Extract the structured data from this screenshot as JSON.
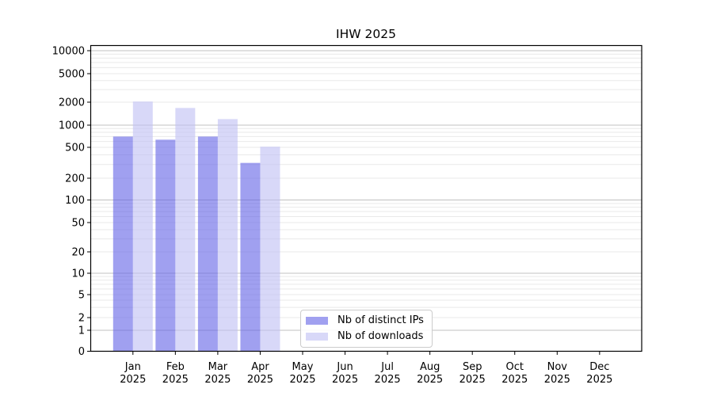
{
  "chart_data": {
    "type": "bar",
    "title": "IHW 2025",
    "categories": [
      "Jan",
      "Feb",
      "Mar",
      "Apr",
      "May",
      "Jun",
      "Jul",
      "Aug",
      "Sep",
      "Oct",
      "Nov",
      "Dec"
    ],
    "category_year": "2025",
    "yscale": "symlog",
    "yticks": [
      0,
      1,
      2,
      5,
      10,
      20,
      50,
      100,
      200,
      500,
      1000,
      2000,
      5000,
      10000
    ],
    "ylim": [
      0,
      11500
    ],
    "grid": "horizontal-major-and-minor",
    "legend_position": "inside-bottom-center",
    "series": [
      {
        "name": "Nb of distinct IPs",
        "color": "#a0a0f0",
        "values": [
          700,
          635,
          700,
          315,
          null,
          null,
          null,
          null,
          null,
          null,
          null,
          null
        ]
      },
      {
        "name": "Nb of downloads",
        "color": "#d8d8f8",
        "values": [
          2040,
          1680,
          1200,
          510,
          null,
          null,
          null,
          null,
          null,
          null,
          null,
          null
        ]
      }
    ]
  }
}
